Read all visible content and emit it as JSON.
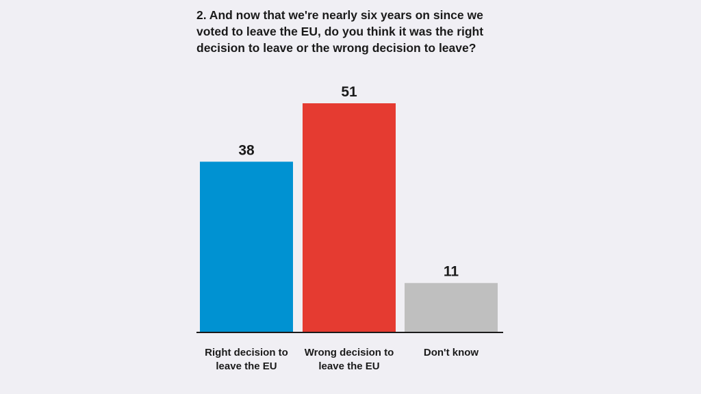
{
  "chart_data": {
    "type": "bar",
    "title": "2. And now that we're nearly six years on since we voted to leave the EU, do you think it was the right decision to leave or the wrong decision to leave?",
    "categories": [
      "Right decision to leave the EU",
      "Wrong decision to leave the EU",
      "Don't know"
    ],
    "values": [
      38,
      51,
      11
    ],
    "value_labels": [
      "38",
      "51",
      "11"
    ],
    "colors": [
      "#0092d2",
      "#e53b31",
      "#bfbfbf"
    ],
    "xlabel": "",
    "ylabel": "",
    "ylim": [
      0,
      51
    ],
    "grid": false,
    "legend": "none"
  }
}
